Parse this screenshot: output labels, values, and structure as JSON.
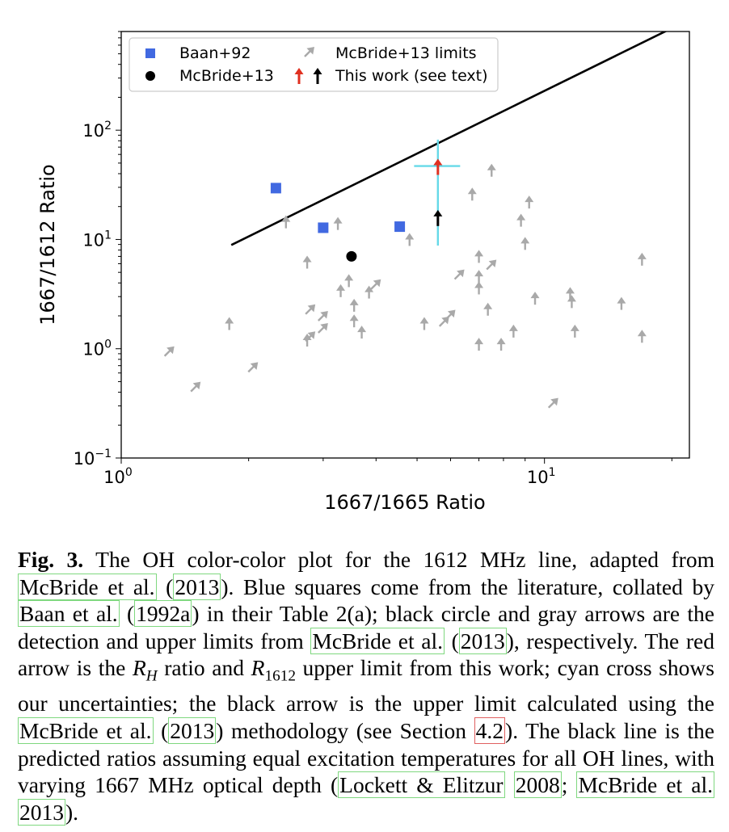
{
  "chart_data": {
    "type": "scatter",
    "xscale": "log",
    "yscale": "log",
    "xlabel": "1667/1665 Ratio",
    "ylabel": "1667/1612 Ratio",
    "xlim": [
      1.0,
      22.0
    ],
    "ylim": [
      0.1,
      800
    ],
    "xticks": [
      1,
      10
    ],
    "xtick_labels": [
      {
        "base": "10",
        "exp": "0"
      },
      {
        "base": "10",
        "exp": "1"
      }
    ],
    "yticks": [
      0.1,
      1,
      10,
      100
    ],
    "ytick_labels": [
      {
        "base": "10",
        "exp": "−1"
      },
      {
        "base": "10",
        "exp": "0"
      },
      {
        "base": "10",
        "exp": "1"
      },
      {
        "base": "10",
        "exp": "2"
      }
    ],
    "legend_position": "upper-left",
    "legend": [
      {
        "label": "Baan+92",
        "marker": "square",
        "color": "#4169e1"
      },
      {
        "label": "McBride+13",
        "marker": "circle",
        "color": "#000000"
      },
      {
        "label": "McBride+13 limits",
        "marker": "arrow-gray",
        "color": "#a9a9a9"
      },
      {
        "label": "This work (see text)",
        "marker": "arrow-red-black",
        "color": "#e03020"
      }
    ],
    "baan92": [
      [
        2.32,
        29.5
      ],
      [
        3.0,
        12.8
      ],
      [
        4.55,
        13.1
      ]
    ],
    "mcbride13": [
      [
        3.5,
        7.0
      ]
    ],
    "mcbride13_limits": [
      {
        "x": 1.3,
        "y": 0.95,
        "dir": "ne"
      },
      {
        "x": 1.5,
        "y": 0.45,
        "dir": "ne"
      },
      {
        "x": 1.8,
        "y": 1.7,
        "dir": "n"
      },
      {
        "x": 2.05,
        "y": 0.68,
        "dir": "ne"
      },
      {
        "x": 2.45,
        "y": 14.5,
        "dir": "n"
      },
      {
        "x": 2.75,
        "y": 6.2,
        "dir": "n"
      },
      {
        "x": 2.75,
        "y": 1.2,
        "dir": "n"
      },
      {
        "x": 2.8,
        "y": 2.3,
        "dir": "ne"
      },
      {
        "x": 2.8,
        "y": 1.3,
        "dir": "ne"
      },
      {
        "x": 3.0,
        "y": 2.0,
        "dir": "ne"
      },
      {
        "x": 3.0,
        "y": 1.55,
        "dir": "ne"
      },
      {
        "x": 3.25,
        "y": 14.0,
        "dir": "n"
      },
      {
        "x": 3.3,
        "y": 3.4,
        "dir": "n"
      },
      {
        "x": 3.45,
        "y": 4.2,
        "dir": "n"
      },
      {
        "x": 3.55,
        "y": 2.5,
        "dir": "n"
      },
      {
        "x": 3.55,
        "y": 1.8,
        "dir": "n"
      },
      {
        "x": 3.7,
        "y": 1.42,
        "dir": "n"
      },
      {
        "x": 3.85,
        "y": 3.3,
        "dir": "n"
      },
      {
        "x": 4.0,
        "y": 3.9,
        "dir": "ne"
      },
      {
        "x": 4.8,
        "y": 10.0,
        "dir": "n"
      },
      {
        "x": 5.2,
        "y": 1.7,
        "dir": "n"
      },
      {
        "x": 5.8,
        "y": 1.78,
        "dir": "ne"
      },
      {
        "x": 6.0,
        "y": 2.05,
        "dir": "ne"
      },
      {
        "x": 6.3,
        "y": 4.8,
        "dir": "ne"
      },
      {
        "x": 6.75,
        "y": 26.0,
        "dir": "n"
      },
      {
        "x": 7.0,
        "y": 7.0,
        "dir": "n"
      },
      {
        "x": 7.0,
        "y": 4.6,
        "dir": "n"
      },
      {
        "x": 7.0,
        "y": 3.6,
        "dir": "n"
      },
      {
        "x": 7.0,
        "y": 1.1,
        "dir": "n"
      },
      {
        "x": 7.35,
        "y": 2.3,
        "dir": "n"
      },
      {
        "x": 7.5,
        "y": 5.9,
        "dir": "ne"
      },
      {
        "x": 7.5,
        "y": 43.0,
        "dir": "n"
      },
      {
        "x": 7.9,
        "y": 1.1,
        "dir": "n"
      },
      {
        "x": 8.45,
        "y": 1.45,
        "dir": "n"
      },
      {
        "x": 8.8,
        "y": 15.0,
        "dir": "n"
      },
      {
        "x": 9.0,
        "y": 9.2,
        "dir": "n"
      },
      {
        "x": 9.2,
        "y": 22.0,
        "dir": "n"
      },
      {
        "x": 9.5,
        "y": 2.9,
        "dir": "n"
      },
      {
        "x": 10.5,
        "y": 0.32,
        "dir": "ne"
      },
      {
        "x": 11.5,
        "y": 3.2,
        "dir": "n"
      },
      {
        "x": 11.6,
        "y": 2.7,
        "dir": "n"
      },
      {
        "x": 11.8,
        "y": 1.45,
        "dir": "n"
      },
      {
        "x": 15.2,
        "y": 2.6,
        "dir": "n"
      },
      {
        "x": 17.0,
        "y": 6.6,
        "dir": "n"
      },
      {
        "x": 17.0,
        "y": 1.3,
        "dir": "n"
      }
    ],
    "this_work": {
      "red_arrow": {
        "x": 5.6,
        "y": 47.0
      },
      "black_arrow": {
        "x": 5.6,
        "y": 16.0
      },
      "cross": {
        "x": 5.6,
        "y": 47.0,
        "xerr": [
          4.92,
          6.32
        ],
        "yerr": [
          8.8,
          82.0
        ]
      }
    },
    "model_line": [
      [
        1.82,
        8.9
      ],
      [
        20.5,
        900
      ]
    ]
  },
  "caption": {
    "fig_label": "Fig. 3.",
    "t1": " The OH color-color plot for the 1612 MHz line, adapted from ",
    "c1a": "McBride et al.",
    "t2": " (",
    "c1b": "2013",
    "t3": "). Blue squares come from the literature, collated by ",
    "c2a": "Baan et al.",
    "t4": " (",
    "c2b": "1992a",
    "t5": ") in their Table 2(a); black circle and gray arrows are the detection and upper limits from ",
    "c3a": "McBride et al.",
    "t6": " (",
    "c3b": "2013",
    "t7": "), respectively. The red arrow is the ",
    "rh_r": "R",
    "rh_sub": "H",
    "t8": " ratio and ",
    "r1612_r": "R",
    "r1612_sub": "1612",
    "t9": " upper limit from this work; cyan cross shows our uncertainties; the black arrow is the upper limit calculated using the ",
    "c4a": "McBride et al.",
    "t10": " (",
    "c4b": "2013",
    "t11": ") methodology (see Section ",
    "sec": "4.2",
    "t12": "). The black line is the predicted ratios assuming equal excitation temperatures for all OH lines, with varying 1667 MHz optical depth (",
    "c5a": "Lockett & Elitzur",
    "t13": " ",
    "c5b": "2008",
    "t14": "; ",
    "c6a": "McBride et al.",
    "t15": " ",
    "c6b": "2013",
    "t16": ")."
  }
}
